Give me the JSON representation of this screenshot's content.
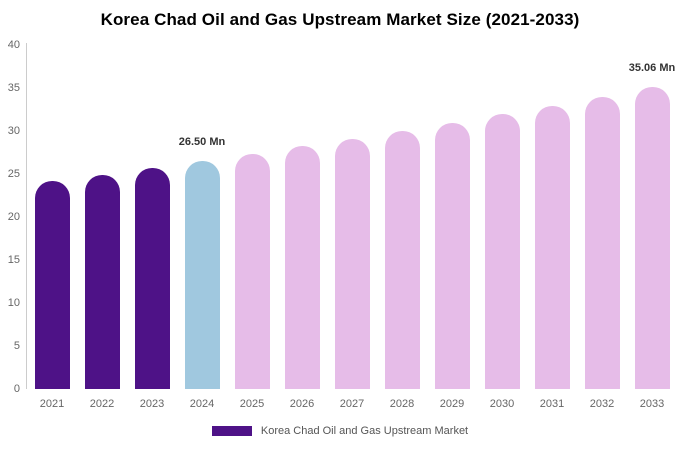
{
  "title": "Korea Chad Oil and Gas Upstream Market Size (2021-2033)",
  "legend": {
    "label": "Korea Chad Oil and Gas Upstream Market",
    "swatch_color": "#4E1287"
  },
  "colors": {
    "historical_bar": "#4E1287",
    "base_year_bar": "#A0C8DF",
    "forecast_bar": "#E6BCE8",
    "axis_line": "#CCCCCC",
    "tick_label": "#666666",
    "annotation_text": "#333333",
    "legend_text": "#555555",
    "title_text": "#000000",
    "background": "#FFFFFF"
  },
  "chart_data": {
    "type": "bar",
    "title": "Korea Chad Oil and Gas Upstream Market Size (2021-2033)",
    "unit": "Mn",
    "categories": [
      "2021",
      "2022",
      "2023",
      "2024",
      "2025",
      "2026",
      "2027",
      "2028",
      "2029",
      "2030",
      "2031",
      "2032",
      "2033"
    ],
    "series": [
      {
        "name": "Korea Chad Oil and Gas Upstream Market",
        "values": [
          24.14,
          24.9,
          25.69,
          26.5,
          27.34,
          28.2,
          29.09,
          30.01,
          30.96,
          31.94,
          32.95,
          33.99,
          35.06
        ],
        "bar_colors": [
          "#4E1287",
          "#4E1287",
          "#4E1287",
          "#A0C8DF",
          "#E6BCE8",
          "#E6BCE8",
          "#E6BCE8",
          "#E6BCE8",
          "#E6BCE8",
          "#E6BCE8",
          "#E6BCE8",
          "#E6BCE8",
          "#E6BCE8"
        ]
      }
    ],
    "annotations": [
      {
        "category": "2024",
        "text": "26.50 Mn"
      },
      {
        "category": "2033",
        "text": "35.06 Mn"
      }
    ],
    "xlabel": "",
    "ylabel": "",
    "ylim": [
      0,
      40
    ],
    "yticks": [
      0,
      5,
      10,
      15,
      20,
      25,
      30,
      35,
      40
    ],
    "grid": false,
    "legend_position": "bottom"
  }
}
